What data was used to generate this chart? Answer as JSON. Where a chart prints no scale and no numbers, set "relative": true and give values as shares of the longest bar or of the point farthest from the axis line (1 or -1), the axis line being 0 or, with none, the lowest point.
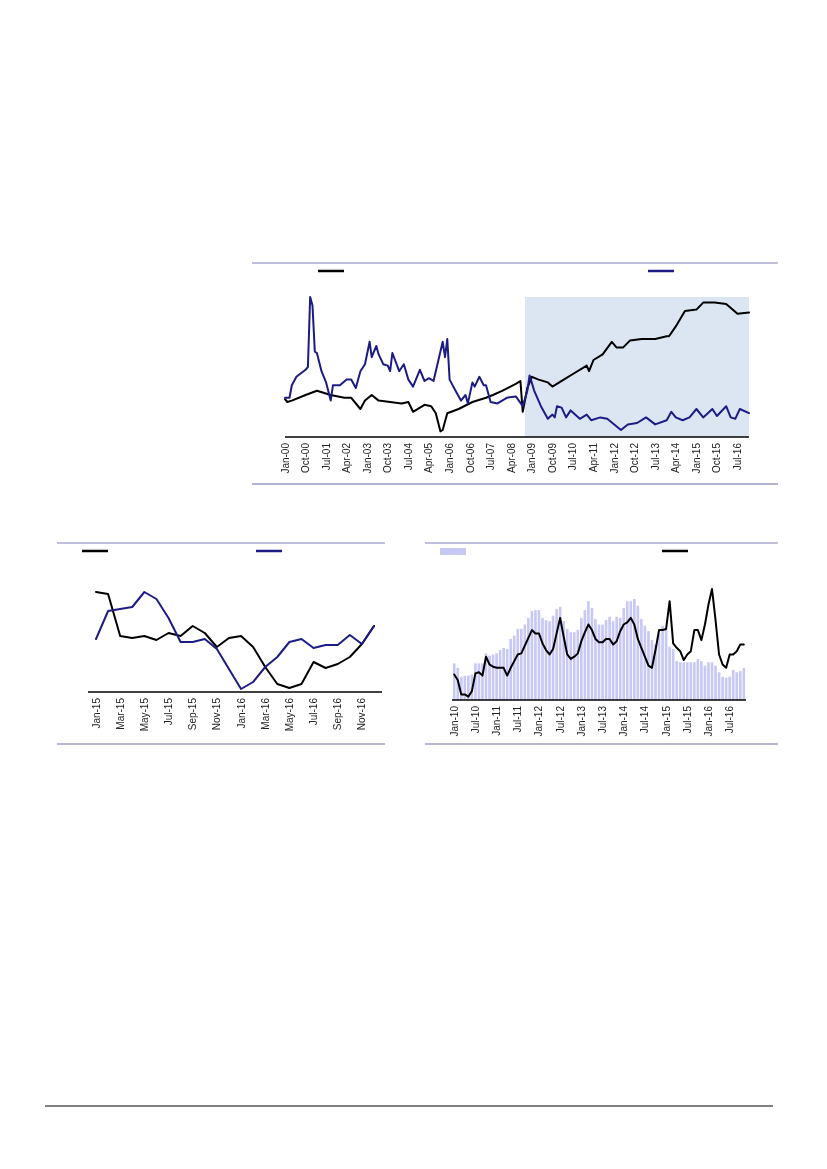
{
  "chart_data": [
    {
      "type": "line",
      "relative": true,
      "xlim": [
        "2000-01",
        "2016-12"
      ],
      "xticks": [
        {
          "value": "2000-01",
          "label": "Jan-00"
        },
        {
          "value": "2000-10",
          "label": "Oct-00"
        },
        {
          "value": "2001-07",
          "label": "Jul-01"
        },
        {
          "value": "2002-04",
          "label": "Apr-02"
        },
        {
          "value": "2003-01",
          "label": "Jan-03"
        },
        {
          "value": "2003-10",
          "label": "Oct-03"
        },
        {
          "value": "2004-07",
          "label": "Jul-04"
        },
        {
          "value": "2005-04",
          "label": "Apr-05"
        },
        {
          "value": "2006-01",
          "label": "Jan-06"
        },
        {
          "value": "2006-10",
          "label": "Oct-06"
        },
        {
          "value": "2007-07",
          "label": "Jul-07"
        },
        {
          "value": "2008-04",
          "label": "Apr-08"
        },
        {
          "value": "2009-01",
          "label": "Jan-09"
        },
        {
          "value": "2009-10",
          "label": "Oct-09"
        },
        {
          "value": "2010-07",
          "label": "Jul-10"
        },
        {
          "value": "2011-04",
          "label": "Apr-11"
        },
        {
          "value": "2012-01",
          "label": "Jan-12"
        },
        {
          "value": "2012-10",
          "label": "Oct-12"
        },
        {
          "value": "2013-07",
          "label": "Jul-13"
        },
        {
          "value": "2014-04",
          "label": "Apr-14"
        },
        {
          "value": "2015-01",
          "label": "Jan-15"
        },
        {
          "value": "2015-10",
          "label": "Oct-15"
        },
        {
          "value": "2016-07",
          "label": "Jul-16"
        }
      ],
      "bands": [
        {
          "axis": "x",
          "from": "2008-10",
          "to": "2016-12",
          "color": "#dce6f2"
        }
      ],
      "series": [
        {
          "color": "#000000",
          "x": [
            "2000-01",
            "2000-02",
            "2000-04",
            "2000-10",
            "2001-03",
            "2001-09",
            "2002-03",
            "2002-06",
            "2002-10",
            "2002-12",
            "2003-03",
            "2003-06",
            "2003-11",
            "2004-04",
            "2004-07",
            "2004-09",
            "2005-02",
            "2005-05",
            "2005-07",
            "2005-09",
            "2005-10",
            "2005-12",
            "2006-05",
            "2006-11",
            "2007-05",
            "2007-08",
            "2007-12",
            "2008-06",
            "2008-08",
            "2008-09",
            "2008-11",
            "2009-01",
            "2009-04",
            "2009-08",
            "2009-10",
            "2010-03",
            "2010-07",
            "2011-01",
            "2011-02",
            "2011-04",
            "2011-08",
            "2011-12",
            "2012-02",
            "2012-05",
            "2012-08",
            "2013-01",
            "2013-07",
            "2013-12",
            "2014-01",
            "2014-04",
            "2014-08",
            "2015-01",
            "2015-04",
            "2015-09",
            "2016-02",
            "2016-07",
            "2016-12"
          ],
          "values": [
            0.27,
            0.25,
            0.26,
            0.3,
            0.33,
            0.3,
            0.28,
            0.28,
            0.2,
            0.26,
            0.3,
            0.26,
            0.25,
            0.24,
            0.25,
            0.18,
            0.23,
            0.22,
            0.17,
            0.04,
            0.05,
            0.17,
            0.2,
            0.25,
            0.28,
            0.3,
            0.33,
            0.38,
            0.4,
            0.18,
            0.35,
            0.43,
            0.41,
            0.39,
            0.36,
            0.41,
            0.45,
            0.51,
            0.47,
            0.55,
            0.59,
            0.68,
            0.64,
            0.64,
            0.69,
            0.7,
            0.7,
            0.72,
            0.72,
            0.79,
            0.9,
            0.91,
            0.96,
            0.96,
            0.95,
            0.88,
            0.89
          ]
        },
        {
          "color": "#1c1c84",
          "x": [
            "2000-01",
            "2000-03",
            "2000-04",
            "2000-06",
            "2000-10",
            "2000-11",
            "2000-12",
            "2001-01",
            "2001-02",
            "2001-03",
            "2001-05",
            "2001-07",
            "2001-09",
            "2001-10",
            "2002-01",
            "2002-04",
            "2002-06",
            "2002-08",
            "2002-10",
            "2002-12",
            "2003-02",
            "2003-03",
            "2003-05",
            "2003-06",
            "2003-08",
            "2003-10",
            "2003-11",
            "2003-12",
            "2004-03",
            "2004-05",
            "2004-07",
            "2004-09",
            "2004-12",
            "2005-02",
            "2005-04",
            "2005-06",
            "2005-10",
            "2005-11",
            "2005-12",
            "2006-01",
            "2006-04",
            "2006-06",
            "2006-08",
            "2006-09",
            "2006-11",
            "2006-12",
            "2007-02",
            "2007-04",
            "2007-05",
            "2007-07",
            "2007-10",
            "2008-02",
            "2008-06",
            "2008-09",
            "2008-11",
            "2008-12",
            "2009-02",
            "2009-05",
            "2009-08",
            "2009-10",
            "2009-11",
            "2009-12",
            "2010-02",
            "2010-04",
            "2010-06",
            "2010-10",
            "2011-01",
            "2011-03",
            "2011-07",
            "2011-10",
            "2012-04",
            "2012-07",
            "2012-11",
            "2013-03",
            "2013-07",
            "2013-12",
            "2014-02",
            "2014-04",
            "2014-07",
            "2014-10",
            "2015-01",
            "2015-04",
            "2015-08",
            "2015-10",
            "2016-02",
            "2016-04",
            "2016-06",
            "2016-08",
            "2016-12"
          ],
          "values": [
            0.28,
            0.28,
            0.37,
            0.43,
            0.48,
            0.5,
            1.0,
            0.94,
            0.61,
            0.6,
            0.47,
            0.39,
            0.26,
            0.37,
            0.37,
            0.41,
            0.41,
            0.35,
            0.47,
            0.52,
            0.68,
            0.57,
            0.65,
            0.59,
            0.52,
            0.51,
            0.47,
            0.6,
            0.47,
            0.52,
            0.41,
            0.36,
            0.48,
            0.4,
            0.42,
            0.4,
            0.68,
            0.57,
            0.7,
            0.41,
            0.32,
            0.26,
            0.3,
            0.24,
            0.39,
            0.36,
            0.43,
            0.37,
            0.37,
            0.25,
            0.24,
            0.28,
            0.29,
            0.22,
            0.33,
            0.44,
            0.33,
            0.22,
            0.13,
            0.16,
            0.14,
            0.22,
            0.21,
            0.14,
            0.19,
            0.13,
            0.16,
            0.12,
            0.14,
            0.13,
            0.05,
            0.09,
            0.1,
            0.14,
            0.09,
            0.12,
            0.18,
            0.14,
            0.12,
            0.14,
            0.2,
            0.14,
            0.2,
            0.15,
            0.22,
            0.14,
            0.13,
            0.2,
            0.17
          ]
        }
      ]
    },
    {
      "type": "line",
      "relative": true,
      "categories": [
        "Jan-15",
        null,
        "Mar-15",
        null,
        "May-15",
        null,
        "Jul-15",
        null,
        "Sep-15",
        null,
        "Nov-15",
        null,
        "Jan-16",
        null,
        "Mar-16",
        null,
        "May-16",
        null,
        "Jul-16",
        null,
        "Sep-16",
        null,
        "Nov-16",
        null
      ],
      "series": [
        {
          "color": "#000000",
          "values": [
            1.0,
            0.98,
            0.56,
            0.54,
            0.56,
            0.52,
            0.59,
            0.56,
            0.66,
            0.59,
            0.45,
            0.54,
            0.56,
            0.45,
            0.25,
            0.08,
            0.04,
            0.08,
            0.3,
            0.24,
            0.28,
            0.35,
            0.48,
            0.66
          ]
        },
        {
          "color": "#1c1c84",
          "values": [
            0.53,
            0.81,
            0.83,
            0.85,
            1.0,
            0.93,
            0.74,
            0.5,
            0.5,
            0.53,
            0.43,
            0.23,
            0.03,
            0.1,
            0.25,
            0.35,
            0.5,
            0.53,
            0.44,
            0.47,
            0.47,
            0.57,
            0.48,
            0.66
          ]
        }
      ]
    },
    {
      "type": "bar",
      "relative": true,
      "categories": [
        "Jan-10",
        null,
        null,
        null,
        null,
        null,
        "Jul-10",
        null,
        null,
        null,
        null,
        null,
        "Jan-11",
        null,
        null,
        null,
        null,
        null,
        "Jul-11",
        null,
        null,
        null,
        null,
        null,
        "Jan-12",
        null,
        null,
        null,
        null,
        null,
        "Jul-12",
        null,
        null,
        null,
        null,
        null,
        "Jan-13",
        null,
        null,
        null,
        null,
        null,
        "Jul-13",
        null,
        null,
        null,
        null,
        null,
        "Jan-14",
        null,
        null,
        null,
        null,
        null,
        "Jul-14",
        null,
        null,
        null,
        null,
        null,
        "Jan-15",
        null,
        null,
        null,
        null,
        null,
        "Jul-15",
        null,
        null,
        null,
        null,
        null,
        "Jan-16",
        null,
        null,
        null,
        null,
        null,
        "Jul-16",
        null,
        null,
        null,
        null
      ],
      "series": [
        {
          "type": "bar",
          "color": "#c8c8f5",
          "values": [
            0.33,
            0.29,
            0.21,
            0.22,
            0.22,
            0.23,
            0.33,
            0.33,
            0.33,
            0.42,
            0.4,
            0.41,
            0.42,
            0.45,
            0.47,
            0.46,
            0.55,
            0.58,
            0.64,
            0.64,
            0.68,
            0.74,
            0.8,
            0.81,
            0.81,
            0.74,
            0.72,
            0.71,
            0.76,
            0.82,
            0.84,
            0.71,
            0.64,
            0.61,
            0.61,
            0.63,
            0.74,
            0.81,
            0.89,
            0.83,
            0.73,
            0.68,
            0.68,
            0.72,
            0.75,
            0.71,
            0.75,
            0.74,
            0.83,
            0.89,
            0.89,
            0.91,
            0.85,
            0.73,
            0.67,
            0.62,
            0.54,
            0.5,
            0.6,
            0.67,
            0.65,
            0.48,
            0.46,
            0.35,
            0.34,
            0.34,
            0.34,
            0.34,
            0.34,
            0.37,
            0.35,
            0.31,
            0.34,
            0.34,
            0.31,
            0.25,
            0.21,
            0.2,
            0.21,
            0.27,
            0.25,
            0.26,
            0.29
          ]
        },
        {
          "type": "line",
          "color": "#000000",
          "values": [
            0.23,
            0.18,
            0.05,
            0.05,
            0.03,
            0.08,
            0.24,
            0.25,
            0.22,
            0.39,
            0.32,
            0.3,
            0.29,
            0.29,
            0.29,
            0.22,
            0.29,
            0.35,
            0.41,
            0.42,
            0.49,
            0.56,
            0.63,
            0.6,
            0.6,
            0.51,
            0.45,
            0.41,
            0.46,
            0.6,
            0.74,
            0.57,
            0.41,
            0.37,
            0.39,
            0.42,
            0.53,
            0.61,
            0.68,
            0.63,
            0.55,
            0.52,
            0.52,
            0.55,
            0.55,
            0.5,
            0.53,
            0.62,
            0.68,
            0.7,
            0.74,
            0.68,
            0.55,
            0.47,
            0.39,
            0.31,
            0.29,
            0.45,
            0.63,
            0.63,
            0.64,
            0.89,
            0.51,
            0.47,
            0.44,
            0.36,
            0.41,
            0.44,
            0.63,
            0.63,
            0.54,
            0.68,
            0.86,
            1.0,
            0.72,
            0.41,
            0.32,
            0.29,
            0.41,
            0.41,
            0.44,
            0.5,
            0.5
          ]
        }
      ]
    }
  ]
}
